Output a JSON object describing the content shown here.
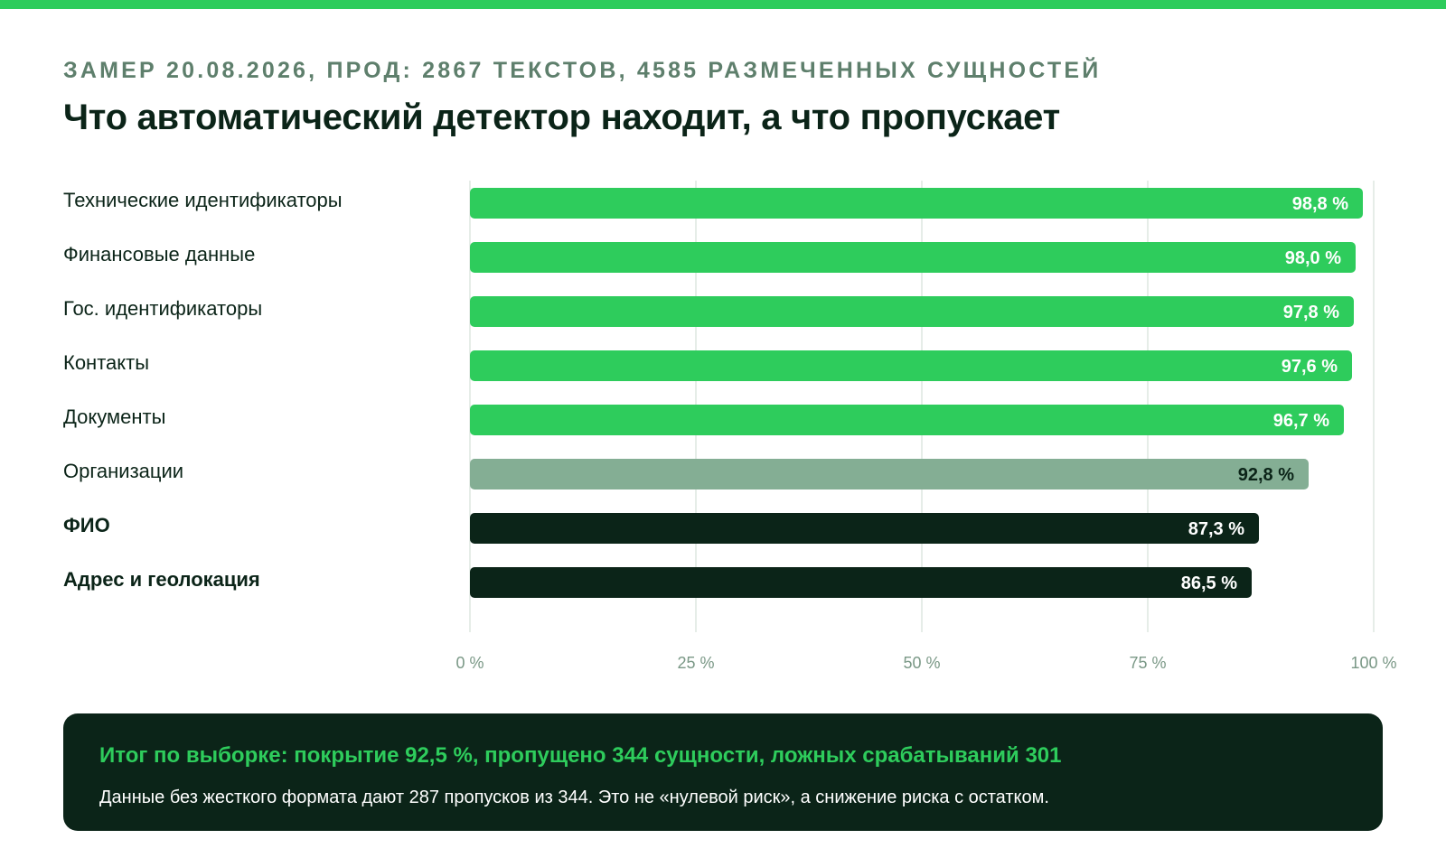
{
  "header": {
    "kicker": "ЗАМЕР 20.08.2026, ПРОД: 2867 ТЕКСТОВ, 4585 РАЗМЕЧЕННЫХ СУЩНОСТЕЙ",
    "title": "Что автоматический детектор находит, а что пропускает"
  },
  "colors": {
    "accent": "#2ecc5c",
    "muted": "#84ae94",
    "dark": "#0b2418",
    "grid": "#dde7e1",
    "tick": "#7a9886"
  },
  "chart_data": {
    "type": "bar",
    "orientation": "horizontal",
    "categories": [
      "Технические идентификаторы",
      "Финансовые данные",
      "Гос. идентификаторы",
      "Контакты",
      "Документы",
      "Организации",
      "ФИО",
      "Адрес и геолокация"
    ],
    "values": [
      98.8,
      98.0,
      97.8,
      97.6,
      96.7,
      92.8,
      87.3,
      86.5
    ],
    "value_labels": [
      "98,8 %",
      "98,0 %",
      "97,8 %",
      "97,6 %",
      "96,7 %",
      "92,8 %",
      "87,3 %",
      "86,5 %"
    ],
    "bar_tiers": [
      "accent",
      "accent",
      "accent",
      "accent",
      "accent",
      "muted",
      "dark",
      "dark"
    ],
    "bold_categories": [
      false,
      false,
      false,
      false,
      false,
      false,
      true,
      true
    ],
    "xlim": [
      0,
      100
    ],
    "xticks": [
      0,
      25,
      50,
      75,
      100
    ],
    "xtick_labels": [
      "0 %",
      "25 %",
      "50 %",
      "75 %",
      "100 %"
    ],
    "grid": true,
    "legend": "none"
  },
  "summary": {
    "headline": "Итог по выборке: покрытие 92,5 %, пропущено 344 сущности, ложных срабатываний 301",
    "note": "Данные без жесткого формата дают 287 пропусков из 344. Это не «нулевой риск», а снижение риска с остатком."
  }
}
